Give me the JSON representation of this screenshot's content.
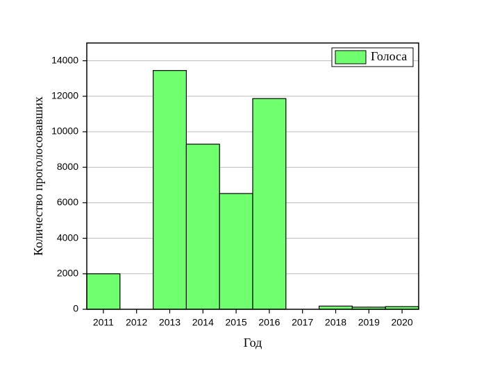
{
  "chart_data": {
    "type": "bar",
    "x_label": "Год",
    "y_label": "Количество проголосовавших",
    "categories": [
      "2011",
      "2012",
      "2013",
      "2014",
      "2015",
      "2016",
      "2017",
      "2018",
      "2019",
      "2020"
    ],
    "series": [
      {
        "name": "Голоса",
        "color": "#6fff6f",
        "values": [
          2000,
          0,
          13450,
          9300,
          6520,
          11870,
          0,
          180,
          120,
          150
        ]
      }
    ],
    "ylim": [
      0,
      15000
    ],
    "yticks": [
      0,
      2000,
      4000,
      6000,
      8000,
      10000,
      12000,
      14000
    ],
    "grid": true,
    "legend": "upper right"
  }
}
